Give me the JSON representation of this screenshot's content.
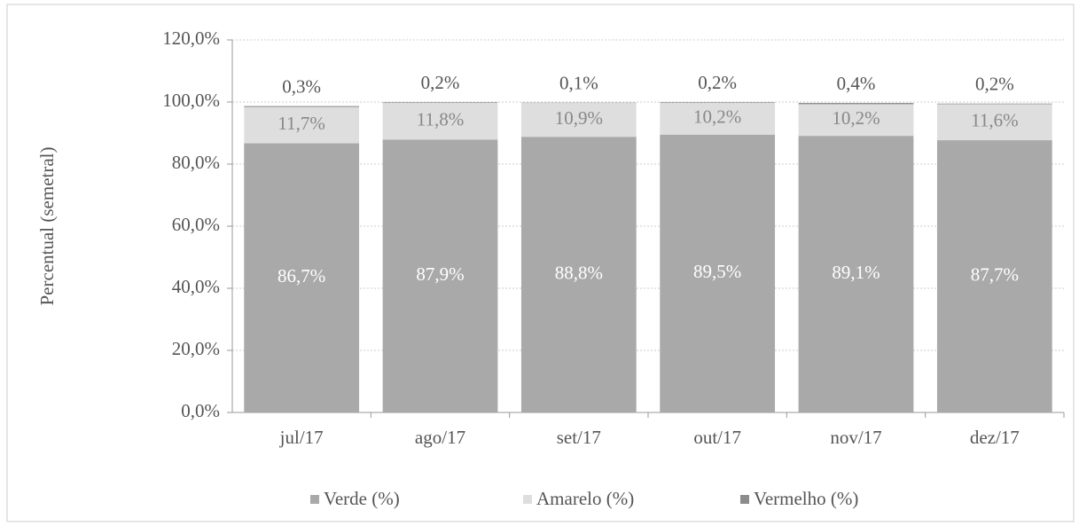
{
  "chart_data": {
    "type": "stacked_bar",
    "y_label": "Percentual (semetral)",
    "categories": [
      "jul/17",
      "ago/17",
      "set/17",
      "out/17",
      "nov/17",
      "dez/17"
    ],
    "series": [
      {
        "name": "Verde (%)",
        "color": "#a9a9a9",
        "values": [
          86.7,
          87.9,
          88.8,
          89.5,
          89.1,
          87.7
        ],
        "value_labels": [
          "86,7%",
          "87,9%",
          "88,8%",
          "89,5%",
          "89,1%",
          "87,7%"
        ]
      },
      {
        "name": "Amarelo (%)",
        "color": "#dedede",
        "values": [
          11.7,
          11.8,
          10.9,
          10.2,
          10.2,
          11.6
        ],
        "value_labels": [
          "11,7%",
          "11,8%",
          "10,9%",
          "10,2%",
          "10,2%",
          "11,6%"
        ]
      },
      {
        "name": "Vermelho (%)",
        "color": "#8c8c8c",
        "values": [
          0.3,
          0.2,
          0.1,
          0.2,
          0.4,
          0.2
        ],
        "value_labels": [
          "0,3%",
          "0,2%",
          "0,1%",
          "0,2%",
          "0,4%",
          "0,2%"
        ]
      }
    ],
    "ylim": [
      0,
      120
    ],
    "yticks": [
      {
        "value": 0,
        "label": "0,0%"
      },
      {
        "value": 20,
        "label": "20,0%"
      },
      {
        "value": 40,
        "label": "40,0%"
      },
      {
        "value": 60,
        "label": "60,0%"
      },
      {
        "value": 80,
        "label": "80,0%"
      },
      {
        "value": 100,
        "label": "100,0%"
      },
      {
        "value": 120,
        "label": "120,0%"
      }
    ],
    "grid": true
  }
}
